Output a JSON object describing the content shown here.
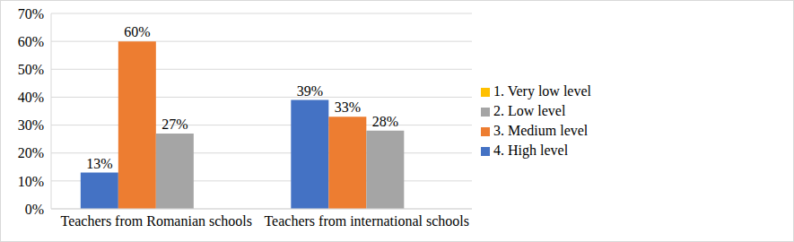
{
  "chart_data": {
    "type": "bar",
    "categories": [
      "Teachers from Romanian schools",
      "Teachers from international schools"
    ],
    "series": [
      {
        "name": "4. High level",
        "color": "#4472c4",
        "values": [
          13,
          39
        ],
        "value_labels": [
          "13%",
          "39%"
        ]
      },
      {
        "name": "3. Medium level",
        "color": "#ed7d31",
        "values": [
          60,
          33
        ],
        "value_labels": [
          "60%",
          "33%"
        ]
      },
      {
        "name": "2. Low level",
        "color": "#a5a5a5",
        "values": [
          27,
          28
        ],
        "value_labels": [
          "27%",
          "28%"
        ]
      },
      {
        "name": "1. Very low level",
        "color": "#ffc000",
        "values": [
          null,
          null
        ],
        "value_labels": [
          null,
          null
        ]
      }
    ],
    "ylim": [
      0,
      70
    ],
    "yticks": [
      {
        "value": 0,
        "label": "0%"
      },
      {
        "value": 10,
        "label": "10%"
      },
      {
        "value": 20,
        "label": "20%"
      },
      {
        "value": 30,
        "label": "30%"
      },
      {
        "value": 40,
        "label": "40%"
      },
      {
        "value": 50,
        "label": "50%"
      },
      {
        "value": 60,
        "label": "60%"
      },
      {
        "value": 70,
        "label": "70%"
      }
    ],
    "grid": true,
    "legend": "right",
    "data_labels": true
  }
}
